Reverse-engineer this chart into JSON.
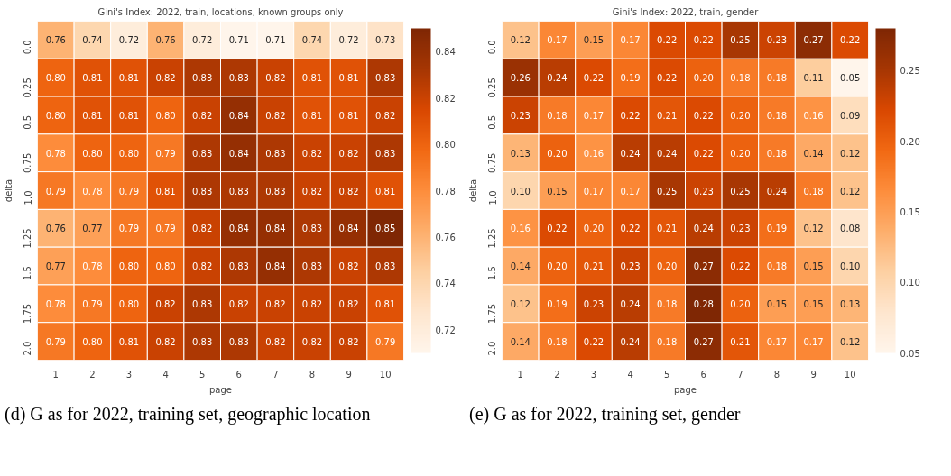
{
  "chart_data": [
    {
      "type": "heatmap",
      "title": "Gini's Index: 2022, train, locations, known groups only",
      "xlabel": "page",
      "ylabel": "delta",
      "categories": [
        "1",
        "2",
        "3",
        "4",
        "5",
        "6",
        "7",
        "8",
        "9",
        "10"
      ],
      "y_categories": [
        "0.0",
        "0.25",
        "0.5",
        "0.75",
        "1.0",
        "1.25",
        "1.5",
        "1.75",
        "2.0"
      ],
      "cells": [
        [
          0.76,
          0.74,
          0.72,
          0.76,
          0.72,
          0.71,
          0.71,
          0.74,
          0.72,
          0.73
        ],
        [
          0.8,
          0.81,
          0.81,
          0.82,
          0.83,
          0.83,
          0.82,
          0.81,
          0.81,
          0.83
        ],
        [
          0.8,
          0.81,
          0.81,
          0.8,
          0.82,
          0.84,
          0.82,
          0.81,
          0.81,
          0.82
        ],
        [
          0.78,
          0.8,
          0.8,
          0.79,
          0.83,
          0.84,
          0.83,
          0.82,
          0.82,
          0.83
        ],
        [
          0.79,
          0.78,
          0.79,
          0.81,
          0.83,
          0.83,
          0.83,
          0.82,
          0.82,
          0.81
        ],
        [
          0.76,
          0.77,
          0.79,
          0.79,
          0.82,
          0.84,
          0.84,
          0.83,
          0.84,
          0.85
        ],
        [
          0.77,
          0.78,
          0.8,
          0.8,
          0.82,
          0.83,
          0.84,
          0.83,
          0.82,
          0.83
        ],
        [
          0.78,
          0.79,
          0.8,
          0.82,
          0.83,
          0.82,
          0.82,
          0.82,
          0.82,
          0.81
        ],
        [
          0.79,
          0.8,
          0.81,
          0.82,
          0.83,
          0.83,
          0.82,
          0.82,
          0.82,
          0.79
        ]
      ],
      "cell_labels": [
        [
          "0.76",
          "0.74",
          "0.72",
          "0.76",
          "0.72",
          "0.71",
          "0.71",
          "0.74",
          "0.72",
          "0.73"
        ],
        [
          "0.80",
          "0.81",
          "0.81",
          "0.82",
          "0.83",
          "0.83",
          "0.82",
          "0.81",
          "0.81",
          "0.83"
        ],
        [
          "0.80",
          "0.81",
          "0.81",
          "0.80",
          "0.82",
          "0.84",
          "0.82",
          "0.81",
          "0.81",
          "0.82"
        ],
        [
          "0.78",
          "0.80",
          "0.80",
          "0.79",
          "0.83",
          "0.84",
          "0.83",
          "0.82",
          "0.82",
          "0.83"
        ],
        [
          "0.79",
          "0.78",
          "0.79",
          "0.81",
          "0.83",
          "0.83",
          "0.83",
          "0.82",
          "0.82",
          "0.81"
        ],
        [
          "0.76",
          "0.77",
          "0.79",
          "0.79",
          "0.82",
          "0.84",
          "0.84",
          "0.83",
          "0.84",
          "0.85"
        ],
        [
          "0.77",
          "0.78",
          "0.80",
          "0.80",
          "0.82",
          "0.83",
          "0.84",
          "0.83",
          "0.82",
          "0.83"
        ],
        [
          "0.78",
          "0.79",
          "0.80",
          "0.82",
          "0.83",
          "0.82",
          "0.82",
          "0.82",
          "0.82",
          "0.81"
        ],
        [
          "0.79",
          "0.80",
          "0.81",
          "0.82",
          "0.83",
          "0.83",
          "0.82",
          "0.82",
          "0.82",
          "0.79"
        ]
      ],
      "clim": [
        0.71,
        0.85
      ],
      "cticks": [
        {
          "value": 0.72,
          "label": "0.72"
        },
        {
          "value": 0.74,
          "label": "0.74"
        },
        {
          "value": 0.76,
          "label": "0.76"
        },
        {
          "value": 0.78,
          "label": "0.78"
        },
        {
          "value": 0.8,
          "label": "0.80"
        },
        {
          "value": 0.82,
          "label": "0.82"
        },
        {
          "value": 0.84,
          "label": "0.84"
        }
      ],
      "annotations": [
        "(d) G as for 2022, training set, geographic location"
      ]
    },
    {
      "type": "heatmap",
      "title": "Gini's Index: 2022, train, gender",
      "xlabel": "page",
      "ylabel": "delta",
      "categories": [
        "1",
        "2",
        "3",
        "4",
        "5",
        "6",
        "7",
        "8",
        "9",
        "10"
      ],
      "y_categories": [
        "0.0",
        "0.25",
        "0.5",
        "0.75",
        "1.0",
        "1.25",
        "1.5",
        "1.75",
        "2.0"
      ],
      "cells": [
        [
          0.12,
          0.17,
          0.15,
          0.17,
          0.22,
          0.22,
          0.25,
          0.23,
          0.27,
          0.22
        ],
        [
          0.26,
          0.24,
          0.22,
          0.19,
          0.22,
          0.2,
          0.18,
          0.18,
          0.11,
          0.05
        ],
        [
          0.23,
          0.18,
          0.17,
          0.22,
          0.21,
          0.22,
          0.2,
          0.18,
          0.16,
          0.09
        ],
        [
          0.13,
          0.2,
          0.16,
          0.24,
          0.24,
          0.22,
          0.2,
          0.18,
          0.14,
          0.12
        ],
        [
          0.1,
          0.15,
          0.17,
          0.17,
          0.25,
          0.23,
          0.25,
          0.24,
          0.18,
          0.12
        ],
        [
          0.16,
          0.22,
          0.2,
          0.22,
          0.21,
          0.24,
          0.23,
          0.19,
          0.12,
          0.08
        ],
        [
          0.14,
          0.2,
          0.21,
          0.23,
          0.2,
          0.27,
          0.22,
          0.18,
          0.15,
          0.1
        ],
        [
          0.12,
          0.19,
          0.23,
          0.24,
          0.18,
          0.28,
          0.2,
          0.15,
          0.15,
          0.13
        ],
        [
          0.14,
          0.18,
          0.22,
          0.24,
          0.18,
          0.27,
          0.21,
          0.17,
          0.17,
          0.12
        ]
      ],
      "cell_labels": [
        [
          "0.12",
          "0.17",
          "0.15",
          "0.17",
          "0.22",
          "0.22",
          "0.25",
          "0.23",
          "0.27",
          "0.22"
        ],
        [
          "0.26",
          "0.24",
          "0.22",
          "0.19",
          "0.22",
          "0.20",
          "0.18",
          "0.18",
          "0.11",
          "0.05"
        ],
        [
          "0.23",
          "0.18",
          "0.17",
          "0.22",
          "0.21",
          "0.22",
          "0.20",
          "0.18",
          "0.16",
          "0.09"
        ],
        [
          "0.13",
          "0.20",
          "0.16",
          "0.24",
          "0.24",
          "0.22",
          "0.20",
          "0.18",
          "0.14",
          "0.12"
        ],
        [
          "0.10",
          "0.15",
          "0.17",
          "0.17",
          "0.25",
          "0.23",
          "0.25",
          "0.24",
          "0.18",
          "0.12"
        ],
        [
          "0.16",
          "0.22",
          "0.20",
          "0.22",
          "0.21",
          "0.24",
          "0.23",
          "0.19",
          "0.12",
          "0.08"
        ],
        [
          "0.14",
          "0.20",
          "0.21",
          "0.23",
          "0.20",
          "0.27",
          "0.22",
          "0.18",
          "0.15",
          "0.10"
        ],
        [
          "0.12",
          "0.19",
          "0.23",
          "0.24",
          "0.18",
          "0.28",
          "0.20",
          "0.15",
          "0.15",
          "0.13"
        ],
        [
          "0.14",
          "0.18",
          "0.22",
          "0.24",
          "0.18",
          "0.27",
          "0.21",
          "0.17",
          "0.17",
          "0.12"
        ]
      ],
      "clim": [
        0.05,
        0.28
      ],
      "cticks": [
        {
          "value": 0.05,
          "label": "0.05"
        },
        {
          "value": 0.1,
          "label": "0.10"
        },
        {
          "value": 0.15,
          "label": "0.15"
        },
        {
          "value": 0.2,
          "label": "0.20"
        },
        {
          "value": 0.25,
          "label": "0.25"
        }
      ],
      "annotations": [
        "(e) G as for 2022, training set, gender"
      ]
    }
  ]
}
